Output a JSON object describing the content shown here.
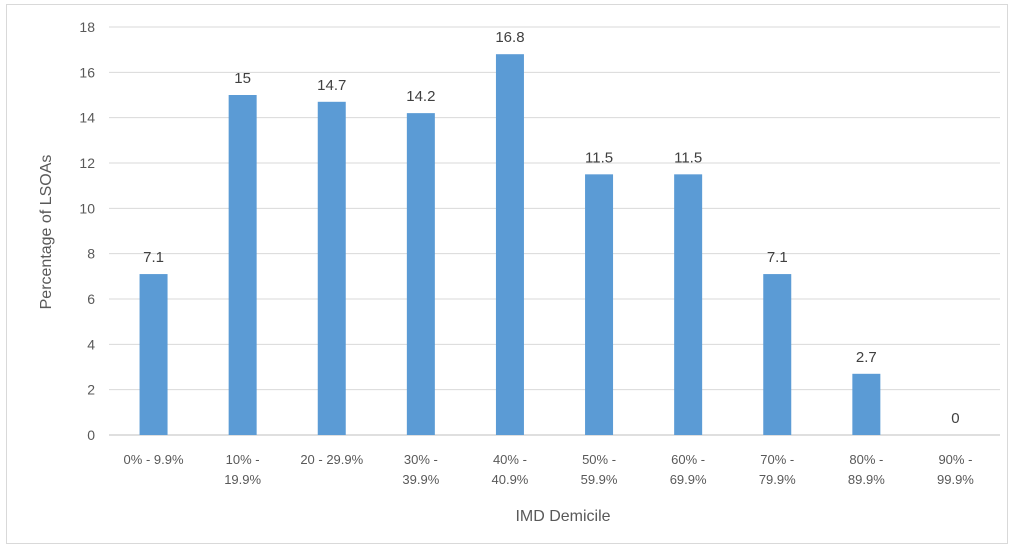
{
  "chart_data": {
    "type": "bar",
    "title": "",
    "xlabel": "IMD Demicile",
    "ylabel": "Percentage of LSOAs",
    "ylim": [
      0,
      18
    ],
    "yticks": [
      0,
      2,
      4,
      6,
      8,
      10,
      12,
      14,
      16,
      18
    ],
    "grid": true,
    "legend": "none",
    "bar_color": "#5b9bd5",
    "categories": [
      [
        "0% - 9.9%"
      ],
      [
        "10% -",
        "19.9%"
      ],
      [
        "20 - 29.9%"
      ],
      [
        "30% -",
        "39.9%"
      ],
      [
        "40% -",
        "40.9%"
      ],
      [
        "50% -",
        "59.9%"
      ],
      [
        "60% -",
        "69.9%"
      ],
      [
        "70% -",
        "79.9%"
      ],
      [
        "80% -",
        "89.9%"
      ],
      [
        "90% -",
        "99.9%"
      ]
    ],
    "values": [
      7.1,
      15,
      14.7,
      14.2,
      16.8,
      11.5,
      11.5,
      7.1,
      2.7,
      0
    ],
    "data_labels": [
      "7.1",
      "15",
      "14.7",
      "14.2",
      "16.8",
      "11.5",
      "11.5",
      "7.1",
      "2.7",
      "0"
    ]
  }
}
